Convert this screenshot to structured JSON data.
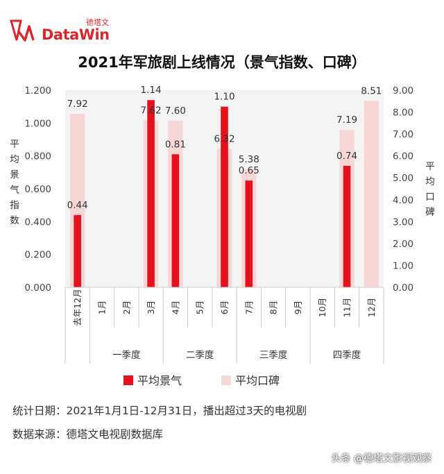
{
  "logo": {
    "brand_en": "DataWin",
    "brand_cn": "德塔文"
  },
  "chart_data": {
    "type": "bar",
    "title": "2021年军旅剧上线情况（景气指数、口碑）",
    "categories": [
      "去年12月",
      "1月",
      "2月",
      "3月",
      "4月",
      "5月",
      "6月",
      "7月",
      "8月",
      "9月",
      "10月",
      "11月",
      "12月"
    ],
    "groups": [
      {
        "label": "一季度",
        "months": [
          "1月",
          "2月",
          "3月"
        ]
      },
      {
        "label": "二季度",
        "months": [
          "4月",
          "5月",
          "6月"
        ]
      },
      {
        "label": "三季度",
        "months": [
          "7月",
          "8月",
          "9月"
        ]
      },
      {
        "label": "四季度",
        "months": [
          "10月",
          "11月",
          "12月"
        ]
      }
    ],
    "series": [
      {
        "name": "平均景气",
        "axis": "left",
        "color": "#e5121d",
        "values": [
          0.44,
          null,
          null,
          1.14,
          0.81,
          null,
          1.1,
          0.65,
          null,
          null,
          null,
          0.74,
          null
        ],
        "labels": [
          "0.44",
          "",
          "",
          "1.14",
          "0.81",
          "",
          "1.10",
          "0.65",
          "",
          "",
          "",
          "0.74",
          ""
        ]
      },
      {
        "name": "平均口碑",
        "axis": "right",
        "color": "#f7d6d6",
        "values": [
          7.92,
          null,
          null,
          7.62,
          7.6,
          null,
          6.32,
          5.38,
          null,
          null,
          null,
          7.19,
          8.51
        ],
        "labels": [
          "7.92",
          "",
          "",
          "7.62",
          "7.60",
          "",
          "6.32",
          "5.38",
          "",
          "",
          "",
          "7.19",
          "8.51"
        ]
      }
    ],
    "ylabel": "平均景气指数",
    "ylabel_right": "平均口碑",
    "ylim": [
      0,
      1.2
    ],
    "ylim_right": [
      0,
      9
    ],
    "yticks": [
      "0.000",
      "0.200",
      "0.400",
      "0.600",
      "0.800",
      "1.000",
      "1.200"
    ],
    "yticks_right": [
      "0.00",
      "1.00",
      "2.00",
      "3.00",
      "4.00",
      "5.00",
      "6.00",
      "7.00",
      "8.00",
      "9.00"
    ],
    "legend_position": "bottom",
    "grid": false
  },
  "footer": {
    "date_label": "统计日期：",
    "date_value": "2021年1月1日-12月31日，播出超过3天的电视剧",
    "source_label": "数据来源：",
    "source_value": "德塔文电视剧数据库"
  },
  "watermark": "头条 @德塔文影视观察"
}
